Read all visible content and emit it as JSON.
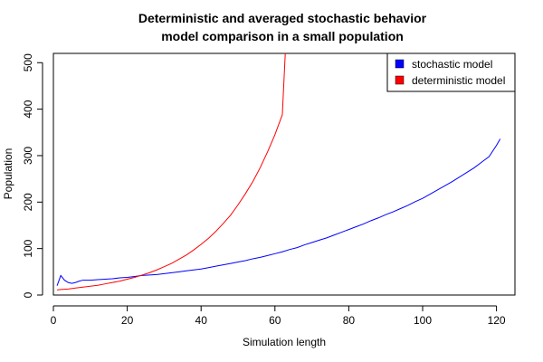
{
  "chart_data": {
    "type": "line",
    "title_lines": [
      "Deterministic and averaged stochastic behavior",
      "model comparison in a small population"
    ],
    "xlabel": "Simulation length",
    "ylabel": "Population",
    "xlim": [
      0,
      125
    ],
    "ylim": [
      0,
      520
    ],
    "x_ticks": [
      0,
      20,
      40,
      60,
      80,
      100,
      120
    ],
    "y_ticks": [
      0,
      100,
      200,
      300,
      400,
      500
    ],
    "grid": false,
    "legend_position": "top-right",
    "series": [
      {
        "name": "stochastic model",
        "color": "#0000ff",
        "x": [
          1,
          2,
          3,
          4,
          5,
          6,
          7,
          8,
          10,
          12,
          14,
          16,
          18,
          20,
          22,
          24,
          26,
          28,
          30,
          32,
          34,
          36,
          38,
          40,
          42,
          44,
          46,
          48,
          50,
          52,
          54,
          56,
          58,
          60,
          62,
          64,
          66,
          68,
          70,
          72,
          74,
          76,
          78,
          80,
          82,
          84,
          86,
          88,
          90,
          92,
          94,
          96,
          98,
          100,
          102,
          104,
          106,
          108,
          110,
          112,
          114,
          116,
          118,
          120,
          121
        ],
        "y": [
          20,
          42,
          32,
          27,
          25,
          27,
          30,
          32,
          32,
          33,
          34,
          35,
          37,
          38,
          40,
          42,
          43,
          44,
          46,
          48,
          50,
          52,
          54,
          56,
          59,
          62,
          65,
          68,
          71,
          74,
          78,
          81,
          85,
          89,
          93,
          98,
          102,
          108,
          113,
          118,
          123,
          129,
          135,
          141,
          147,
          153,
          160,
          166,
          173,
          179,
          186,
          193,
          201,
          208,
          217,
          226,
          235,
          244,
          254,
          264,
          274,
          286,
          298,
          322,
          336
        ]
      },
      {
        "name": "deterministic model",
        "color": "#ff0000",
        "x": [
          1,
          2,
          4,
          6,
          8,
          10,
          12,
          14,
          16,
          18,
          20,
          22,
          24,
          26,
          28,
          30,
          32,
          34,
          36,
          38,
          40,
          42,
          44,
          46,
          48,
          50,
          52,
          54,
          56,
          58,
          60,
          62,
          62.8
        ],
        "y": [
          11,
          12,
          13,
          15,
          17,
          19,
          21,
          24,
          27,
          30,
          34,
          38,
          43,
          48,
          54,
          61,
          68,
          77,
          86,
          97,
          109,
          122,
          137,
          154,
          172,
          194,
          218,
          244,
          274,
          308,
          345,
          388,
          520
        ]
      }
    ]
  }
}
